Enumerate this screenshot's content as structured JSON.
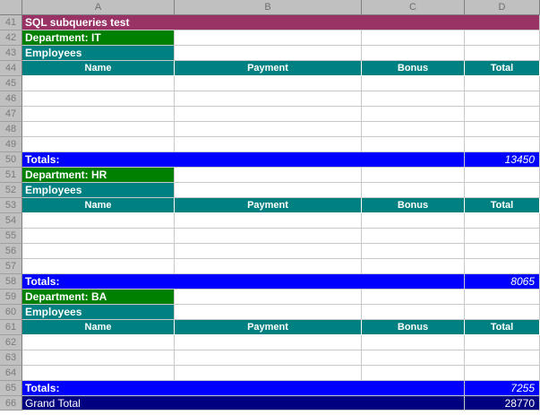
{
  "columns": [
    "A",
    "B",
    "C",
    "D"
  ],
  "title": "SQL subqueries test",
  "departments": [
    {
      "dept_row": "42",
      "dept_label": "Department: IT",
      "emp_row": "43",
      "emp_label": "Employees",
      "head_row": "44",
      "blank_rows": [
        "45",
        "46",
        "47",
        "48",
        "49"
      ],
      "total_row": "50",
      "total_label": "Totals:",
      "total_value": "13450"
    },
    {
      "dept_row": "51",
      "dept_label": "Department: HR",
      "emp_row": "52",
      "emp_label": "Employees",
      "head_row": "53",
      "blank_rows": [
        "54",
        "55",
        "56",
        "57"
      ],
      "total_row": "58",
      "total_label": "Totals:",
      "total_value": "8065"
    },
    {
      "dept_row": "59",
      "dept_label": "Department: BA",
      "emp_row": "60",
      "emp_label": "Employees",
      "head_row": "61",
      "blank_rows": [
        "62",
        "63",
        "64"
      ],
      "total_row": "65",
      "total_label": "Totals:",
      "total_value": "7255"
    }
  ],
  "table_headers": {
    "name": "Name",
    "payment": "Payment",
    "bonus": "Bonus",
    "total": "Total"
  },
  "title_row": "41",
  "grand_row": "66",
  "grand_label": "Grand Total",
  "grand_value": "28770",
  "colors": {
    "title": "#993366",
    "dept": "#008000",
    "teal": "#008080",
    "totals": "#0000ff",
    "grand": "#000080"
  }
}
